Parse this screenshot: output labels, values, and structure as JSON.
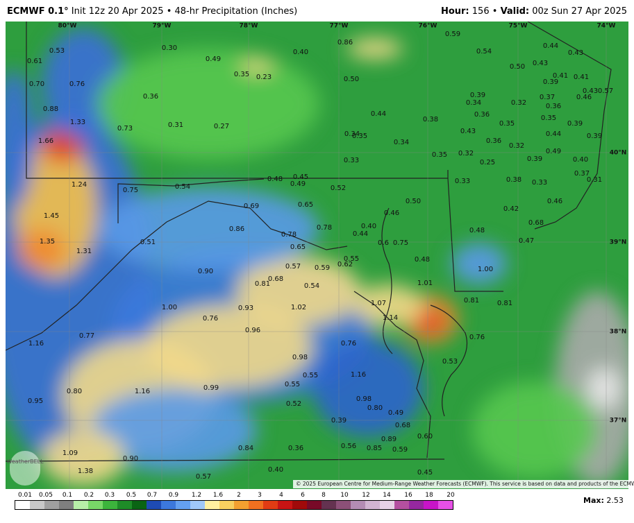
{
  "header": {
    "model": "ECMWF 0.1°",
    "init": "Init 12z 20 Apr 2025 • 48-hr Precipitation (Inches)",
    "hour_label": "Hour:",
    "hour": "156",
    "sep": "•",
    "valid_label": "Valid:",
    "valid": "00z Sun 27 Apr 2025"
  },
  "lon_labels": [
    "80°W",
    "79°W",
    "78°W",
    "77°W",
    "76°W",
    "75°W",
    "74°W"
  ],
  "lat_labels": [
    "40°N",
    "39°N",
    "38°N",
    "37°N"
  ],
  "map_labels": [
    "0.53",
    "0.61",
    "0.70",
    "0.76",
    "0.88",
    "1.33",
    "0.73",
    "1.66",
    "1.24",
    "0.75",
    "0.54",
    "1.45",
    "1.35",
    "1.31",
    "0.51",
    "0.86",
    "0.69",
    "0.90",
    "1.00",
    "0.76",
    "0.93",
    "0.96",
    "0.81",
    "0.68",
    "0.78",
    "0.65",
    "0.57",
    "0.59",
    "0.62",
    "0.55",
    "0.54",
    "1.02",
    "0.65",
    "0.78",
    "0.40",
    "0.44",
    "0.46",
    "0.50",
    "0.6",
    "0.75",
    "0.48",
    "1.01",
    "1.07",
    "1.14",
    "0.81",
    "0.81",
    "0.76",
    "0.53",
    "0.76",
    "0.98",
    "0.55",
    "0.55",
    "1.16",
    "0.52",
    "0.98",
    "0.80",
    "0.49",
    "0.39",
    "0.68",
    "0.60",
    "0.89",
    "0.56",
    "0.85",
    "0.59",
    "0.45",
    "0.36",
    "0.84",
    "0.40",
    "0.57",
    "0.90",
    "1.09",
    "1.38",
    "0.95",
    "0.80",
    "1.16",
    "0.99",
    "0.77",
    "1.16",
    "0.30",
    "0.49",
    "0.35",
    "0.23",
    "0.40",
    "0.86",
    "0.59",
    "0.54",
    "0.44",
    "0.43",
    "0.50",
    "0.43",
    "0.41",
    "0.41",
    "0.39",
    "0.43",
    "0.57",
    "0.46",
    "0.50",
    "0.36",
    "0.31",
    "0.27",
    "0.44",
    "0.38",
    "0.39",
    "0.34",
    "0.32",
    "0.37",
    "0.36",
    "0.36",
    "0.35",
    "0.35",
    "0.39",
    "0.43",
    "0.44",
    "0.39",
    "0.34",
    "0.35",
    "0.34",
    "0.36",
    "0.32",
    "0.49",
    "0.35",
    "0.32",
    "0.33",
    "0.25",
    "0.39",
    "0.40",
    "0.37",
    "0.31",
    "0.38",
    "0.33",
    "0.33",
    "0.48",
    "0.45",
    "0.49",
    "0.52",
    "0.42",
    "0.46",
    "0.48",
    "0.68",
    "0.47",
    "1.00"
  ],
  "copyright": "© 2025 European Centre for Medium-Range Weather Forecasts (ECMWF). This service is based on data and products of the ECMWF.",
  "logo": "WeatherBELL",
  "colorbar_labels": [
    "0.01",
    "0.05",
    "0.1",
    "0.2",
    "0.3",
    "0.5",
    "0.7",
    "0.9",
    "1.2",
    "1.6",
    "2",
    "3",
    "4",
    "6",
    "8",
    "10",
    "12",
    "14",
    "16",
    "18",
    "20"
  ],
  "max_label": "Max:",
  "max_value": "2.53"
}
